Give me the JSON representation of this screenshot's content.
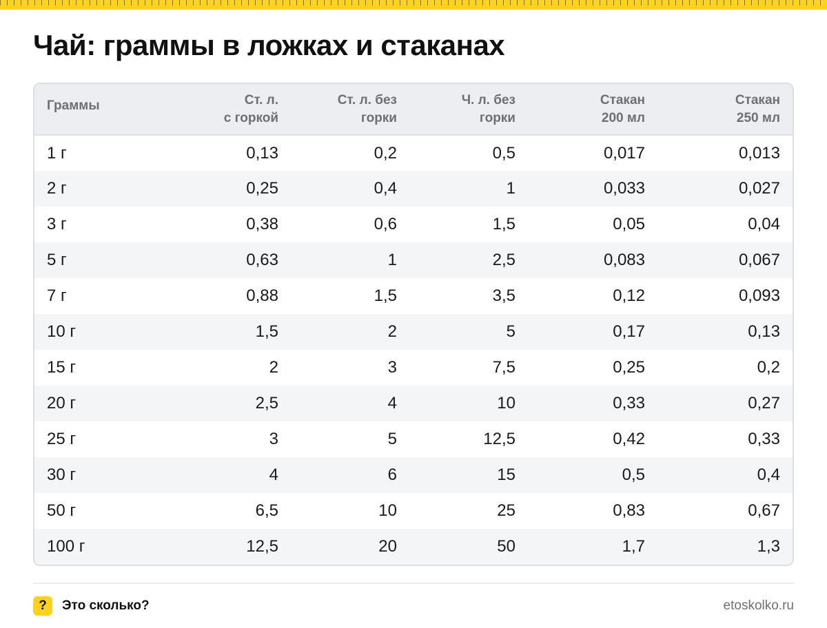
{
  "title": "Чай: граммы в ложках и стаканах",
  "table": {
    "headers": [
      [
        "Граммы"
      ],
      [
        "Ст. л.",
        "с горкой"
      ],
      [
        "Ст. л. без",
        "горки"
      ],
      [
        "Ч. л. без",
        "горки"
      ],
      [
        "Стакан",
        "200 мл"
      ],
      [
        "Стакан",
        "250 мл"
      ]
    ],
    "rows": [
      [
        "1 г",
        "0,13",
        "0,2",
        "0,5",
        "0,017",
        "0,013"
      ],
      [
        "2 г",
        "0,25",
        "0,4",
        "1",
        "0,033",
        "0,027"
      ],
      [
        "3 г",
        "0,38",
        "0,6",
        "1,5",
        "0,05",
        "0,04"
      ],
      [
        "5 г",
        "0,63",
        "1",
        "2,5",
        "0,083",
        "0,067"
      ],
      [
        "7 г",
        "0,88",
        "1,5",
        "3,5",
        "0,12",
        "0,093"
      ],
      [
        "10 г",
        "1,5",
        "2",
        "5",
        "0,17",
        "0,13"
      ],
      [
        "15 г",
        "2",
        "3",
        "7,5",
        "0,25",
        "0,2"
      ],
      [
        "20 г",
        "2,5",
        "4",
        "10",
        "0,33",
        "0,27"
      ],
      [
        "25 г",
        "3",
        "5",
        "12,5",
        "0,42",
        "0,33"
      ],
      [
        "30 г",
        "4",
        "6",
        "15",
        "0,5",
        "0,4"
      ],
      [
        "50 г",
        "6,5",
        "10",
        "25",
        "0,83",
        "0,67"
      ],
      [
        "100 г",
        "12,5",
        "20",
        "50",
        "1,7",
        "1,3"
      ]
    ]
  },
  "footer": {
    "badge": "?",
    "brand": "Это сколько?",
    "site": "etoskolko.ru"
  },
  "colors": {
    "accent": "#ffd21f",
    "header_bg": "#eceef1",
    "stripe_bg": "#f4f5f7",
    "header_text": "#6b7077"
  }
}
